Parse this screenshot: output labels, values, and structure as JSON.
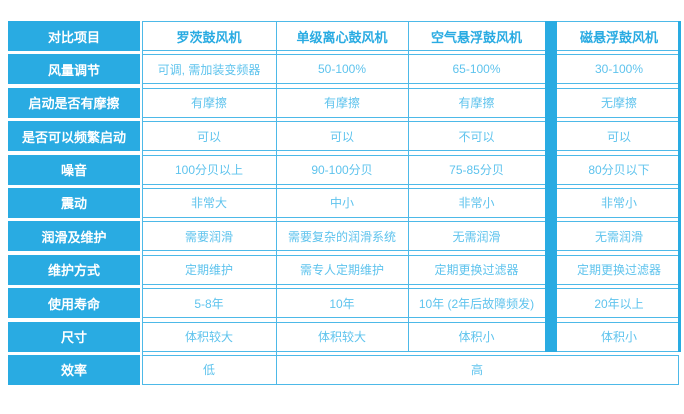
{
  "colors": {
    "accent_blue": "#29abe2",
    "border_blue": "#4db9e8",
    "value_text": "#5ec3ed",
    "header_text": "#29abe2"
  },
  "chart_data": {
    "type": "table",
    "corner_label": "对比项目",
    "columns": [
      "罗茨鼓风机",
      "单级离心鼓风机",
      "空气悬浮鼓风机",
      "磁悬浮鼓风机"
    ],
    "highlighted_column": "磁悬浮鼓风机",
    "rows": [
      {
        "label": "风量调节",
        "values": [
          "可调, 需加装变频器",
          "50-100%",
          "65-100%",
          "30-100%"
        ]
      },
      {
        "label": "启动是否有摩擦",
        "values": [
          "有摩擦",
          "有摩擦",
          "有摩擦",
          "无摩擦"
        ]
      },
      {
        "label": "是否可以频繁启动",
        "values": [
          "可以",
          "可以",
          "不可以",
          "可以"
        ]
      },
      {
        "label": "噪音",
        "values": [
          "100分贝以上",
          "90-100分贝",
          "75-85分贝",
          "80分贝以下"
        ]
      },
      {
        "label": "震动",
        "values": [
          "非常大",
          "中小",
          "非常小",
          "非常小"
        ]
      },
      {
        "label": "润滑及维护",
        "values": [
          "需要润滑",
          "需要复杂的润滑系统",
          "无需润滑",
          "无需润滑"
        ]
      },
      {
        "label": "维护方式",
        "values": [
          "定期维护",
          "需专人定期维护",
          "定期更换过滤器",
          "定期更换过滤器"
        ]
      },
      {
        "label": "使用寿命",
        "values": [
          "5-8年",
          "10年",
          "10年 (2年后故障频发)",
          "20年以上"
        ]
      },
      {
        "label": "尺寸",
        "values": [
          "体积较大",
          "体积较大",
          "体积小",
          "体积小"
        ]
      }
    ],
    "efficiency": {
      "label": "效率",
      "low_value": "低",
      "high_value": "高"
    }
  }
}
